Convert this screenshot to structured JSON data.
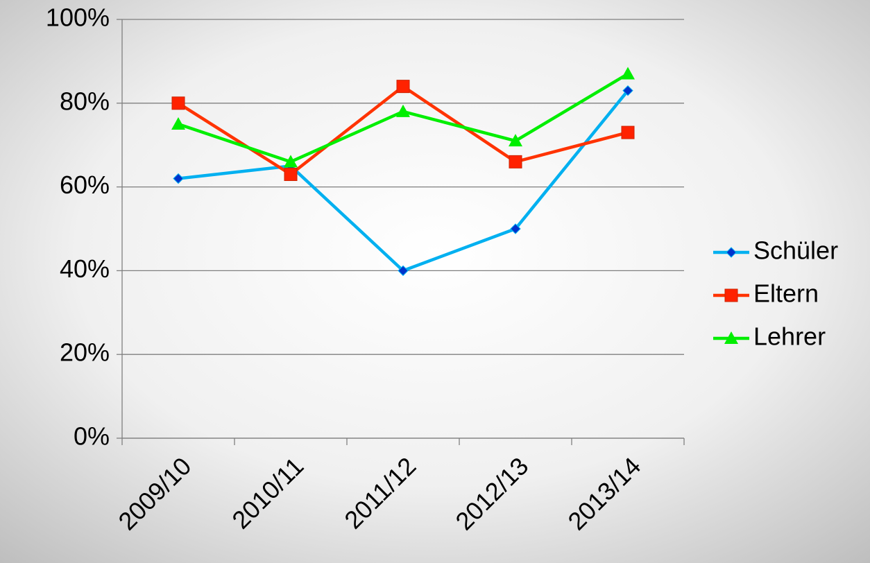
{
  "chart_data": {
    "type": "line",
    "categories": [
      "2009/10",
      "2010/11",
      "2011/12",
      "2012/13",
      "2013/14"
    ],
    "series": [
      {
        "name": "Schüler",
        "color": "#00b0f0",
        "marker_color": "#0033cc",
        "marker": "diamond",
        "values": [
          62,
          65,
          40,
          50,
          83
        ]
      },
      {
        "name": "Eltern",
        "color": "#ff3300",
        "marker_color": "#ff2200",
        "marker": "square",
        "values": [
          80,
          63,
          84,
          66,
          73
        ]
      },
      {
        "name": "Lehrer",
        "color": "#00ee00",
        "marker_color": "#00ee00",
        "marker": "triangle",
        "values": [
          75,
          66,
          78,
          71,
          87
        ]
      }
    ],
    "ylim": [
      0,
      100
    ],
    "yticks": [
      {
        "value": 0,
        "label": "0%"
      },
      {
        "value": 20,
        "label": "20%"
      },
      {
        "value": 40,
        "label": "40%"
      },
      {
        "value": 60,
        "label": "60%"
      },
      {
        "value": 80,
        "label": "80%"
      },
      {
        "value": 100,
        "label": "100%"
      }
    ],
    "grid": true,
    "legend": "right"
  }
}
